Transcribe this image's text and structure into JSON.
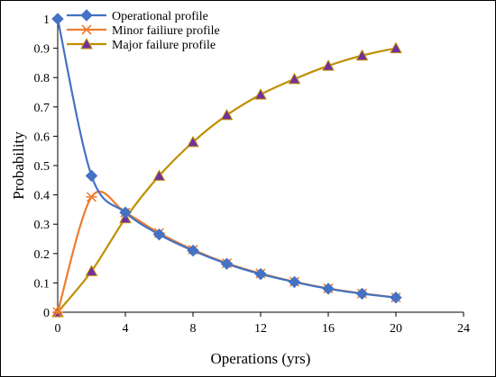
{
  "chart_data": {
    "type": "line",
    "title": "",
    "xlabel": "Operations (yrs)",
    "ylabel": "Probability",
    "xlim": [
      0,
      24
    ],
    "ylim": [
      0,
      1
    ],
    "xticks": [
      0,
      4,
      8,
      12,
      16,
      20,
      24
    ],
    "yticks": [
      0,
      0.1,
      0.2,
      0.3,
      0.4,
      0.5,
      0.6,
      0.7,
      0.8,
      0.9,
      1
    ],
    "grid": false,
    "legend_position": "top-left",
    "series": [
      {
        "name": "Operational profile",
        "color": "#4472C4",
        "marker": "diamond",
        "x": [
          0,
          2,
          4,
          6,
          8,
          10,
          12,
          14,
          16,
          18,
          20
        ],
        "y": [
          1.0,
          0.465,
          0.34,
          0.265,
          0.21,
          0.165,
          0.13,
          0.103,
          0.08,
          0.063,
          0.05
        ]
      },
      {
        "name": "Minor failiure profile",
        "color": "#ED7D31",
        "marker": "asterisk",
        "x": [
          0,
          2,
          4,
          6,
          8,
          10,
          12,
          14,
          16,
          18,
          20
        ],
        "y": [
          0.0,
          0.393,
          0.34,
          0.27,
          0.213,
          0.167,
          0.132,
          0.104,
          0.081,
          0.064,
          0.05
        ]
      },
      {
        "name": "Major failure profile",
        "color": "#BF9000",
        "marker_fill": "#7030A0",
        "marker": "triangle",
        "x": [
          0,
          2,
          4,
          6,
          8,
          10,
          12,
          14,
          16,
          18,
          20
        ],
        "y": [
          0.0,
          0.14,
          0.32,
          0.465,
          0.58,
          0.672,
          0.742,
          0.795,
          0.84,
          0.875,
          0.9
        ]
      }
    ]
  }
}
